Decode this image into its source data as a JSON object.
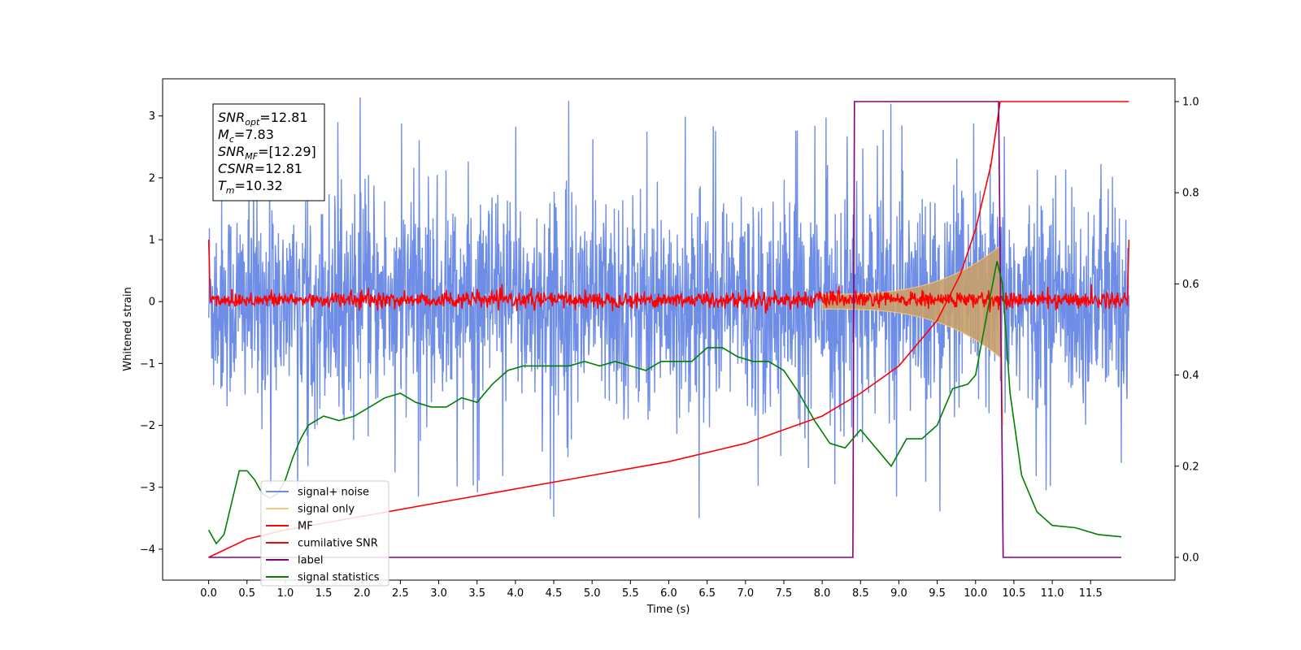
{
  "chart_data": {
    "type": "line",
    "xlabel": "Time (s)",
    "ylabel": "Whitened strain",
    "x_ticks": [
      "0.0",
      "0.5",
      "1.0",
      "1.5",
      "2.0",
      "2.5",
      "3.0",
      "3.5",
      "4.0",
      "4.5",
      "5.0",
      "5.5",
      "6.0",
      "6.5",
      "7.0",
      "7.5",
      "8.0",
      "8.5",
      "9.0",
      "9.5",
      "10.0",
      "10.5",
      "11.0",
      "11.5"
    ],
    "xlim": [
      -0.6,
      12.6
    ],
    "ylim_left": [
      -4.5,
      3.6
    ],
    "y_ticks_left": [
      "3",
      "2",
      "1",
      "0",
      "−1",
      "−2",
      "−3",
      "−4"
    ],
    "ylim_right": [
      -0.05,
      1.05
    ],
    "y_ticks_right": [
      "1.0",
      "0.8",
      "0.6",
      "0.4",
      "0.2",
      "0.0"
    ],
    "grid": false,
    "legend_position": "lower-left",
    "annotation": {
      "lines": [
        {
          "base": "SNR",
          "sub": "opt",
          "value": "=12.81"
        },
        {
          "base": "M",
          "sub": "c",
          "value": "=7.83"
        },
        {
          "base": "SNR",
          "sub": "MF",
          "value": "=[12.29]"
        },
        {
          "base": "CSNR",
          "sub": "",
          "value": "=12.81"
        },
        {
          "base": "T",
          "sub": "m",
          "value": "=10.32"
        }
      ]
    },
    "series": [
      {
        "name": "signal+ noise",
        "color": "#6e8de6",
        "axis": "left",
        "noise_amplitude": 1.0,
        "x_range": [
          0.0,
          12.0
        ]
      },
      {
        "name": "signal only",
        "color": "#f5c77a",
        "axis": "left",
        "envelope_start": 8.0,
        "envelope_peak_x": 10.32,
        "envelope_peak_y": 0.9
      },
      {
        "name": "MF",
        "color": "#ff0000",
        "axis": "left",
        "noise_amplitude": 0.12
      },
      {
        "name": "cumilative SNR",
        "color": "#ff0000",
        "axis": "right",
        "x": [
          0.0,
          0.5,
          1.0,
          2.0,
          3.0,
          4.0,
          5.0,
          6.0,
          7.0,
          7.5,
          8.0,
          8.5,
          9.0,
          9.5,
          9.8,
          10.0,
          10.2,
          10.32,
          12.0
        ],
        "y": [
          0.0,
          0.04,
          0.06,
          0.09,
          0.12,
          0.15,
          0.18,
          0.21,
          0.25,
          0.28,
          0.31,
          0.36,
          0.42,
          0.52,
          0.62,
          0.72,
          0.86,
          1.0,
          1.0
        ]
      },
      {
        "name": "label",
        "color": "#800080",
        "axis": "right",
        "x": [
          0.0,
          8.4,
          8.42,
          10.3,
          10.36,
          11.9
        ],
        "y": [
          0.0,
          0.0,
          1.0,
          1.0,
          0.0,
          0.0
        ]
      },
      {
        "name": "signal statistics",
        "color": "#008000",
        "axis": "right",
        "x": [
          0.0,
          0.1,
          0.2,
          0.3,
          0.4,
          0.5,
          0.6,
          0.7,
          0.8,
          0.9,
          1.0,
          1.1,
          1.2,
          1.3,
          1.4,
          1.5,
          1.7,
          1.9,
          2.1,
          2.3,
          2.5,
          2.7,
          2.9,
          3.1,
          3.3,
          3.5,
          3.7,
          3.9,
          4.1,
          4.3,
          4.5,
          4.7,
          4.9,
          5.1,
          5.3,
          5.5,
          5.7,
          5.9,
          6.1,
          6.3,
          6.5,
          6.7,
          6.9,
          7.1,
          7.3,
          7.5,
          7.7,
          7.9,
          8.1,
          8.3,
          8.5,
          8.7,
          8.9,
          9.1,
          9.3,
          9.5,
          9.7,
          9.9,
          10.0,
          10.1,
          10.2,
          10.28,
          10.35,
          10.45,
          10.6,
          10.8,
          11.0,
          11.3,
          11.6,
          11.9
        ],
        "y": [
          0.06,
          0.03,
          0.05,
          0.12,
          0.19,
          0.19,
          0.17,
          0.14,
          0.13,
          0.14,
          0.17,
          0.22,
          0.26,
          0.29,
          0.3,
          0.31,
          0.3,
          0.31,
          0.33,
          0.35,
          0.36,
          0.34,
          0.33,
          0.33,
          0.35,
          0.34,
          0.38,
          0.41,
          0.42,
          0.42,
          0.42,
          0.42,
          0.43,
          0.42,
          0.43,
          0.42,
          0.41,
          0.43,
          0.43,
          0.43,
          0.46,
          0.46,
          0.44,
          0.43,
          0.43,
          0.41,
          0.36,
          0.3,
          0.25,
          0.24,
          0.28,
          0.24,
          0.2,
          0.26,
          0.26,
          0.29,
          0.37,
          0.38,
          0.4,
          0.49,
          0.58,
          0.65,
          0.6,
          0.36,
          0.18,
          0.1,
          0.07,
          0.065,
          0.05,
          0.045
        ]
      }
    ]
  }
}
